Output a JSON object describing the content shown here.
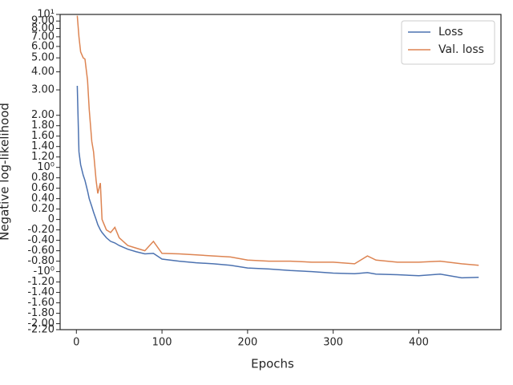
{
  "chart_data": {
    "type": "line",
    "xlabel": "Epochs",
    "ylabel": "Negative log-likelihood",
    "x": [
      1,
      3,
      5,
      8,
      10,
      13,
      15,
      18,
      20,
      23,
      25,
      28,
      30,
      35,
      40,
      45,
      50,
      60,
      70,
      80,
      90,
      100,
      120,
      140,
      160,
      180,
      200,
      225,
      250,
      275,
      300,
      325,
      340,
      350,
      375,
      400,
      425,
      450,
      470
    ],
    "series": [
      {
        "name": "Loss",
        "color": "#4c72b0",
        "values": [
          3.2,
          1.3,
          1.05,
          0.85,
          0.75,
          0.55,
          0.4,
          0.25,
          0.14,
          0.0,
          -0.1,
          -0.2,
          -0.25,
          -0.35,
          -0.42,
          -0.45,
          -0.5,
          -0.57,
          -0.62,
          -0.66,
          -0.65,
          -0.76,
          -0.8,
          -0.83,
          -0.85,
          -0.88,
          -0.93,
          -0.95,
          -0.98,
          -1.0,
          -1.03,
          -1.04,
          -1.02,
          -1.05,
          -1.06,
          -1.08,
          -1.05,
          -1.12,
          -1.11
        ]
      },
      {
        "name": "Val. loss",
        "color": "#dd8452",
        "values": [
          9.8,
          7.0,
          5.5,
          5.0,
          4.9,
          3.5,
          2.2,
          1.5,
          1.3,
          0.75,
          0.5,
          0.7,
          0.0,
          -0.2,
          -0.25,
          -0.15,
          -0.35,
          -0.5,
          -0.55,
          -0.6,
          -0.42,
          -0.65,
          -0.66,
          -0.68,
          -0.7,
          -0.72,
          -0.78,
          -0.8,
          -0.8,
          -0.82,
          -0.82,
          -0.85,
          -0.7,
          -0.78,
          -0.82,
          -0.82,
          -0.8,
          -0.85,
          -0.88
        ]
      }
    ],
    "xlim": [
      -19,
      496
    ],
    "xticks": [
      0,
      100,
      200,
      300,
      400
    ],
    "ylim": [
      -2.2,
      10
    ],
    "yscale": "symlog",
    "linthresh": 2,
    "yticks": [
      {
        "value": -2.2,
        "label": "-2.20"
      },
      {
        "value": -2.0,
        "label": "-2.00"
      },
      {
        "value": -1.8,
        "label": "-1.80"
      },
      {
        "value": -1.6,
        "label": "-1.60"
      },
      {
        "value": -1.4,
        "label": "-1.40"
      },
      {
        "value": -1.2,
        "label": "-1.20"
      },
      {
        "value": -1,
        "label": "-10⁰"
      },
      {
        "value": -0.8,
        "label": "-0.80"
      },
      {
        "value": -0.6,
        "label": "-0.60"
      },
      {
        "value": -0.4,
        "label": "-0.40"
      },
      {
        "value": -0.2,
        "label": "-0.20"
      },
      0,
      {
        "value": 0.2,
        "label": "0.20"
      },
      {
        "value": 0.4,
        "label": "0.40"
      },
      {
        "value": 0.6,
        "label": "0.60"
      },
      {
        "value": 0.8,
        "label": "0.80"
      },
      {
        "value": 1,
        "label": "10⁰"
      },
      {
        "value": 1.2,
        "label": "1.20"
      },
      {
        "value": 1.4,
        "label": "1.40"
      },
      {
        "value": 1.6,
        "label": "1.60"
      },
      {
        "value": 1.8,
        "label": "1.80"
      },
      {
        "value": 2.0,
        "label": "2.00"
      },
      {
        "value": 3,
        "label": "3.00"
      },
      {
        "value": 4,
        "label": "4.00"
      },
      {
        "value": 5,
        "label": "5.00"
      },
      {
        "value": 6,
        "label": "6.00"
      },
      {
        "value": 7,
        "label": "7.00"
      },
      {
        "value": 8,
        "label": "8.00"
      },
      {
        "value": 9,
        "label": "9.00"
      },
      {
        "value": 10,
        "label": "10¹"
      }
    ],
    "legend": "upper right"
  }
}
